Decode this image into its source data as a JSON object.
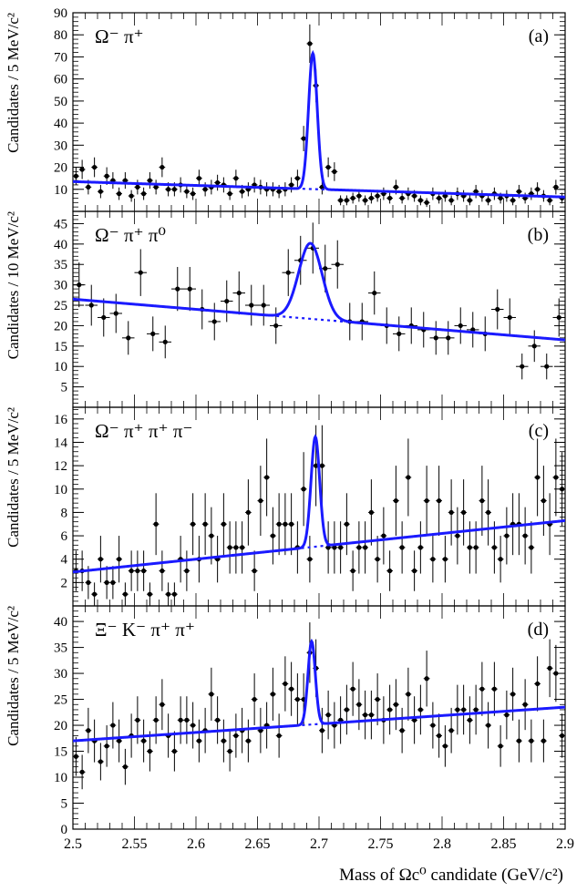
{
  "figure": {
    "x_axis_label": "Mass of Ωc⁰ candidate (GeV/c²)",
    "x_ticks": [
      "2.5",
      "2.55",
      "2.6",
      "2.65",
      "2.7",
      "2.75",
      "2.8",
      "2.85",
      "2.9"
    ],
    "fit_color": "#1a1aff"
  },
  "chart_data": [
    {
      "type": "scatter",
      "panel_letter": "(a)",
      "channel": "Ω⁻ π⁺",
      "ylabel": "Candidates / 5 MeV/c²",
      "ylim": [
        0,
        90
      ],
      "xlim": [
        2.5,
        2.9
      ],
      "yticks": [
        10,
        20,
        30,
        40,
        50,
        60,
        70,
        80,
        90
      ],
      "x": [
        2.5025,
        2.5075,
        2.5125,
        2.5175,
        2.5225,
        2.5275,
        2.5325,
        2.5375,
        2.5425,
        2.5475,
        2.5525,
        2.5575,
        2.5625,
        2.5675,
        2.5725,
        2.5775,
        2.5825,
        2.5875,
        2.5925,
        2.5975,
        2.6025,
        2.6075,
        2.6125,
        2.6175,
        2.6225,
        2.6275,
        2.6325,
        2.6375,
        2.6425,
        2.6475,
        2.6525,
        2.6575,
        2.6625,
        2.6675,
        2.6725,
        2.6775,
        2.6825,
        2.6875,
        2.6925,
        2.6975,
        2.7025,
        2.7075,
        2.7125,
        2.7175,
        2.7225,
        2.7275,
        2.7325,
        2.7375,
        2.7425,
        2.7475,
        2.7525,
        2.7575,
        2.7625,
        2.7675,
        2.7725,
        2.7775,
        2.7825,
        2.7875,
        2.7925,
        2.7975,
        2.8025,
        2.8075,
        2.8125,
        2.8175,
        2.8225,
        2.8275,
        2.8325,
        2.8375,
        2.8425,
        2.8475,
        2.8525,
        2.8575,
        2.8625,
        2.8675,
        2.8725,
        2.8775,
        2.8825,
        2.8875,
        2.8925,
        2.8975
      ],
      "y": [
        16,
        19,
        11,
        20,
        9,
        16,
        14,
        8,
        14,
        7,
        11,
        8,
        14,
        11,
        20,
        10,
        10,
        12,
        9,
        8,
        15,
        10,
        11,
        13,
        12,
        8,
        15,
        9,
        10,
        12,
        11,
        10,
        10,
        9,
        10,
        12,
        15,
        33,
        76,
        57,
        11,
        20,
        18,
        5,
        5,
        6,
        7,
        5,
        6,
        7,
        8,
        6,
        11,
        6,
        8,
        7,
        5,
        4,
        8,
        6,
        7,
        5,
        8,
        7,
        5,
        9,
        7,
        5,
        8,
        6,
        7,
        5,
        9,
        6,
        8,
        10,
        7,
        5,
        11,
        6
      ],
      "peak_mean": 2.695,
      "peak_sigma": 0.0035,
      "peak_amplitude": 61.5,
      "background_line": [
        [
          2.5,
          13.5
        ],
        [
          2.9,
          6.5
        ]
      ]
    },
    {
      "type": "scatter",
      "panel_letter": "(b)",
      "channel": "Ω⁻ π⁺ π⁰",
      "ylabel": "Candidates / 10 MeV/c²",
      "ylim": [
        0,
        48
      ],
      "xlim": [
        2.5,
        2.9
      ],
      "yticks": [
        5,
        10,
        15,
        20,
        25,
        30,
        35,
        40,
        45
      ],
      "x": [
        2.505,
        2.515,
        2.525,
        2.535,
        2.545,
        2.555,
        2.565,
        2.575,
        2.585,
        2.595,
        2.605,
        2.615,
        2.625,
        2.635,
        2.645,
        2.655,
        2.665,
        2.675,
        2.685,
        2.695,
        2.705,
        2.715,
        2.725,
        2.735,
        2.745,
        2.755,
        2.765,
        2.775,
        2.785,
        2.795,
        2.805,
        2.815,
        2.825,
        2.835,
        2.845,
        2.855,
        2.865,
        2.875,
        2.885,
        2.895
      ],
      "y": [
        30,
        25,
        22,
        23,
        17,
        33,
        18,
        16,
        29,
        29,
        24,
        21,
        26,
        28,
        25,
        25,
        20,
        33,
        36,
        39,
        34,
        35,
        21,
        21,
        28,
        20,
        18,
        20,
        19,
        17,
        17,
        20,
        19,
        18,
        24,
        22,
        10,
        15,
        10,
        22
      ],
      "peak_mean": 2.693,
      "peak_sigma": 0.0095,
      "peak_amplitude": 18.5,
      "background_line": [
        [
          2.5,
          26.5
        ],
        [
          2.9,
          16.5
        ]
      ]
    },
    {
      "type": "scatter",
      "panel_letter": "(c)",
      "channel": "Ω⁻ π⁺ π⁺ π⁻",
      "ylabel": "Candidates / 5 MeV/c²",
      "ylim": [
        0,
        17
      ],
      "xlim": [
        2.5,
        2.9
      ],
      "yticks": [
        2,
        4,
        6,
        8,
        10,
        12,
        14,
        16
      ],
      "x": [
        2.5025,
        2.5075,
        2.5125,
        2.5175,
        2.5225,
        2.5275,
        2.5325,
        2.5375,
        2.5425,
        2.5475,
        2.5525,
        2.5575,
        2.5625,
        2.5675,
        2.5725,
        2.5775,
        2.5825,
        2.5875,
        2.5925,
        2.5975,
        2.6025,
        2.6075,
        2.6125,
        2.6175,
        2.6225,
        2.6275,
        2.6325,
        2.6375,
        2.6425,
        2.6475,
        2.6525,
        2.6575,
        2.6625,
        2.6675,
        2.6725,
        2.6775,
        2.6825,
        2.6875,
        2.6925,
        2.6975,
        2.7025,
        2.7075,
        2.7125,
        2.7175,
        2.7225,
        2.7275,
        2.7325,
        2.7375,
        2.7425,
        2.7475,
        2.7525,
        2.7575,
        2.7625,
        2.7675,
        2.7725,
        2.7775,
        2.7825,
        2.7875,
        2.7925,
        2.7975,
        2.8025,
        2.8075,
        2.8125,
        2.8175,
        2.8225,
        2.8275,
        2.8325,
        2.8375,
        2.8425,
        2.8475,
        2.8525,
        2.8575,
        2.8625,
        2.8675,
        2.8725,
        2.8775,
        2.8825,
        2.8875,
        2.8925,
        2.8975
      ],
      "y": [
        3,
        3,
        2,
        1,
        4,
        2,
        2,
        4,
        1,
        3,
        3,
        3,
        1,
        7,
        3,
        1,
        1,
        4,
        3,
        7,
        4,
        7,
        6,
        4,
        7,
        5,
        5,
        5,
        8,
        3,
        9,
        11,
        6,
        7,
        7,
        7,
        5,
        10,
        4,
        12,
        12,
        5,
        5,
        5,
        7,
        3,
        5,
        5,
        8,
        4,
        6,
        3,
        9,
        5,
        11,
        3,
        5,
        9,
        4,
        9,
        4,
        8,
        6,
        8,
        5,
        5,
        9,
        8,
        5,
        4,
        6,
        7,
        7,
        6,
        5,
        11,
        9,
        7,
        11,
        10
      ],
      "peak_mean": 2.697,
      "peak_sigma": 0.0035,
      "peak_amplitude": 9.4,
      "background_line": [
        [
          2.5,
          2.9
        ],
        [
          2.9,
          7.3
        ]
      ]
    },
    {
      "type": "scatter",
      "panel_letter": "(d)",
      "channel": "Ξ⁻ K⁻ π⁺ π⁺",
      "ylabel": "Candidates / 5 MeV/c²",
      "ylim": [
        0,
        43
      ],
      "xlim": [
        2.5,
        2.9
      ],
      "yticks": [
        0,
        5,
        10,
        15,
        20,
        25,
        30,
        35,
        40
      ],
      "x": [
        2.5025,
        2.5075,
        2.5125,
        2.5175,
        2.5225,
        2.5275,
        2.5325,
        2.5375,
        2.5425,
        2.5475,
        2.5525,
        2.5575,
        2.5625,
        2.5675,
        2.5725,
        2.5775,
        2.5825,
        2.5875,
        2.5925,
        2.5975,
        2.6025,
        2.6075,
        2.6125,
        2.6175,
        2.6225,
        2.6275,
        2.6325,
        2.6375,
        2.6425,
        2.6475,
        2.6525,
        2.6575,
        2.6625,
        2.6675,
        2.6725,
        2.6775,
        2.6825,
        2.6875,
        2.6925,
        2.6975,
        2.7025,
        2.7075,
        2.7125,
        2.7175,
        2.7225,
        2.7275,
        2.7325,
        2.7375,
        2.7425,
        2.7475,
        2.7525,
        2.7575,
        2.7625,
        2.7675,
        2.7725,
        2.7775,
        2.7825,
        2.7875,
        2.7925,
        2.7975,
        2.8025,
        2.8075,
        2.8125,
        2.8175,
        2.8225,
        2.8275,
        2.8325,
        2.8375,
        2.8425,
        2.8475,
        2.8525,
        2.8575,
        2.8625,
        2.8675,
        2.8725,
        2.8775,
        2.8825,
        2.8875,
        2.8925,
        2.8975
      ],
      "y": [
        14,
        11,
        19,
        17,
        13,
        16,
        20,
        17,
        12,
        18,
        21,
        17,
        15,
        21,
        24,
        18,
        15,
        21,
        21,
        20,
        17,
        19,
        26,
        21,
        17,
        15,
        18,
        19,
        17,
        25,
        19,
        20,
        26,
        18,
        28,
        27,
        25,
        25,
        34,
        31,
        19,
        22,
        20,
        21,
        23,
        27,
        24,
        22,
        22,
        25,
        21,
        23,
        24,
        19,
        26,
        21,
        23,
        29,
        20,
        18,
        16,
        19,
        23,
        23,
        21,
        23,
        27,
        20,
        27,
        16,
        22,
        26,
        17,
        24,
        17,
        28,
        17,
        31,
        30,
        18
      ],
      "peak_mean": 2.694,
      "peak_sigma": 0.003,
      "peak_amplitude": 16.0,
      "background_line": [
        [
          2.5,
          17.0
        ],
        [
          2.9,
          23.5
        ]
      ]
    }
  ]
}
